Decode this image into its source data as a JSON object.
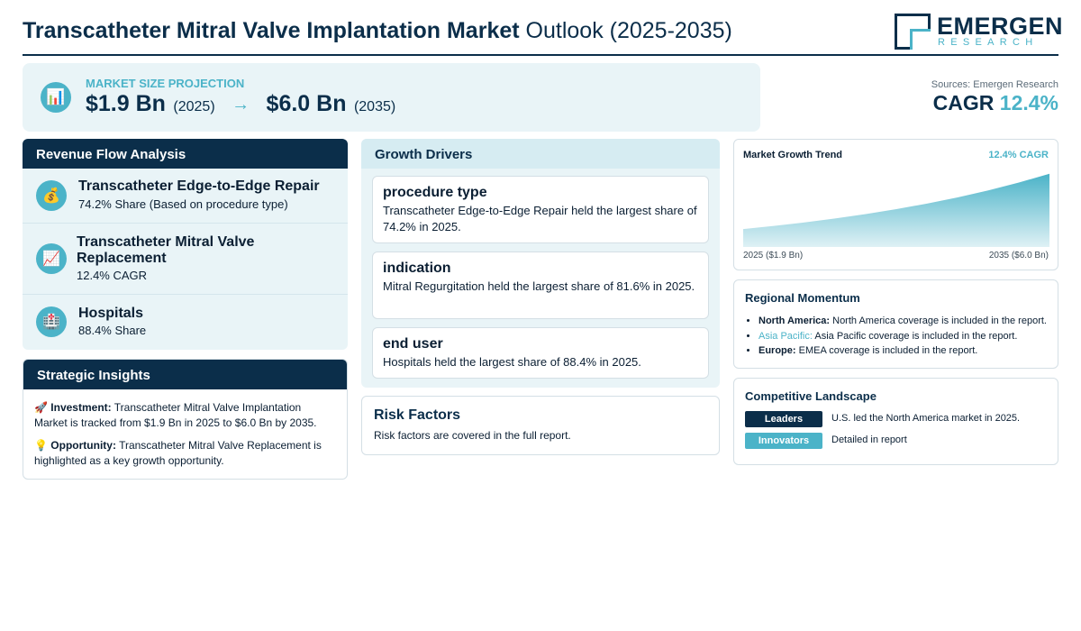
{
  "header": {
    "title_bold": "Transcatheter Mitral Valve Implantation Market",
    "title_rest": "Outlook (2025-2035)",
    "logo_main": "EMERGEN",
    "logo_sub": "RESEARCH"
  },
  "projection": {
    "icon": "bar-chart-icon",
    "label": "MARKET SIZE PROJECTION",
    "start_value": "$1.9 Bn",
    "start_year": "(2025)",
    "arrow": "→",
    "end_value": "$6.0 Bn",
    "end_year": "(2035)"
  },
  "cagr": {
    "source": "Sources: Emergen Research",
    "label": "CAGR",
    "value": "12.4%"
  },
  "revenue_flow": {
    "title": "Revenue Flow Analysis",
    "items": [
      {
        "icon": "money-bag-icon",
        "title": "Transcatheter Edge-to-Edge Repair",
        "sub": "74.2% Share (Based on procedure type)"
      },
      {
        "icon": "chart-increasing-icon",
        "title": "Transcatheter Mitral Valve Replacement",
        "sub": "12.4% CAGR"
      },
      {
        "icon": "hospital-icon",
        "title": "Hospitals",
        "sub": "88.4% Share"
      }
    ]
  },
  "strategic": {
    "title": "Strategic Insights",
    "investment_label": "Investment:",
    "investment_text": "Transcatheter Mitral Valve Implantation Market is tracked from $1.9 Bn in 2025 to $6.0 Bn by 2035.",
    "opportunity_label": "Opportunity:",
    "opportunity_text": "Transcatheter Mitral Valve Replacement is highlighted as a key growth opportunity."
  },
  "drivers": {
    "title": "Growth Drivers",
    "cards": [
      {
        "title": "procedure type",
        "text": "Transcatheter Edge-to-Edge Repair held the largest share of 74.2% in 2025."
      },
      {
        "title": "indication",
        "text": "Mitral Regurgitation held the largest share of 81.6% in 2025."
      },
      {
        "title": "end user",
        "text": "Hospitals held the largest share of 88.4% in 2025."
      }
    ]
  },
  "risk": {
    "title": "Risk Factors",
    "text": "Risk factors are covered in the full report."
  },
  "chart_data": {
    "type": "area",
    "title": "Market Growth Trend",
    "badge": "12.4% CAGR",
    "x": [
      2025,
      2035
    ],
    "start_label": "2025 ($1.9 Bn)",
    "end_label": "2035 ($6.0 Bn)",
    "series": [
      {
        "values": [
          1.9,
          6.0
        ]
      }
    ],
    "colors": {
      "top": "#4bb3c8",
      "fade": "#dff1f5"
    }
  },
  "regional": {
    "title": "Regional Momentum",
    "items": [
      {
        "region": "North America:",
        "text": "North America coverage is included in the report."
      },
      {
        "region": "Asia Pacific:",
        "text": "Asia Pacific coverage is included in the report."
      },
      {
        "region": "Europe:",
        "text": "EMEA coverage is included in the report."
      }
    ]
  },
  "competitive": {
    "title": "Competitive Landscape",
    "rows": [
      {
        "tag": "Leaders",
        "text": "U.S. led the North America market in 2025."
      },
      {
        "tag": "Innovators",
        "text": "Detailed in report"
      }
    ]
  }
}
